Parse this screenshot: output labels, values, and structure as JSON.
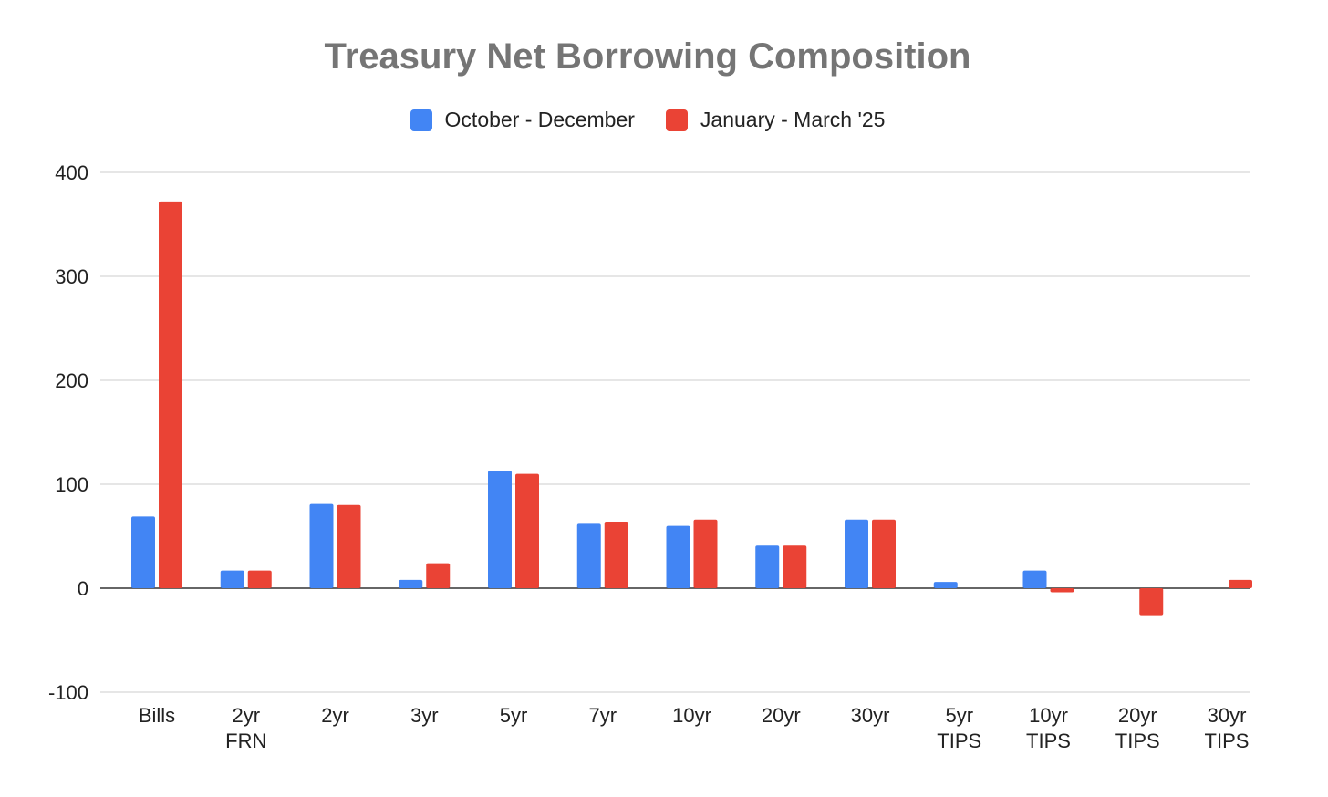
{
  "chart_data": {
    "type": "bar",
    "title": "Treasury Net Borrowing Composition",
    "categories": [
      [
        "Bills"
      ],
      [
        "2yr",
        "FRN"
      ],
      [
        "2yr"
      ],
      [
        "3yr"
      ],
      [
        "5yr"
      ],
      [
        "7yr"
      ],
      [
        "10yr"
      ],
      [
        "20yr"
      ],
      [
        "30yr"
      ],
      [
        "5yr",
        "TIPS"
      ],
      [
        "10yr",
        "TIPS"
      ],
      [
        "20yr",
        "TIPS"
      ],
      [
        "30yr",
        "TIPS"
      ]
    ],
    "series": [
      {
        "name": "October - December",
        "color": "#4285f4",
        "values": [
          69,
          17,
          81,
          8,
          113,
          62,
          60,
          41,
          66,
          6,
          17,
          0,
          0
        ]
      },
      {
        "name": "January - March '25",
        "color": "#ea4335",
        "values": [
          372,
          17,
          80,
          24,
          110,
          64,
          66,
          41,
          66,
          0,
          -4,
          -26,
          8
        ]
      }
    ],
    "xlabel": "",
    "ylabel": "",
    "ylim": [
      -100,
      400
    ],
    "yticks": [
      400,
      300,
      200,
      100,
      0,
      -100
    ],
    "grid": true,
    "legend": "top-center"
  }
}
